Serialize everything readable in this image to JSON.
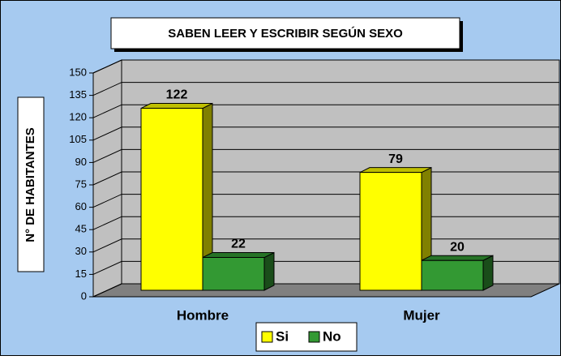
{
  "chart_data": {
    "type": "bar3d",
    "title": "SABEN LEER Y ESCRIBIR SEGÚN SEXO",
    "y_label": "N° DE HABITANTES",
    "categories": [
      "Hombre",
      "Mujer"
    ],
    "series": [
      {
        "name": "Si",
        "color": "#ffff00",
        "values": [
          122,
          79
        ]
      },
      {
        "name": "No",
        "color": "#339933",
        "values": [
          22,
          20
        ]
      }
    ],
    "ylim": [
      0,
      150
    ],
    "yticks": [
      0,
      15,
      30,
      45,
      60,
      75,
      90,
      105,
      120,
      135,
      150
    ],
    "grid": true
  }
}
